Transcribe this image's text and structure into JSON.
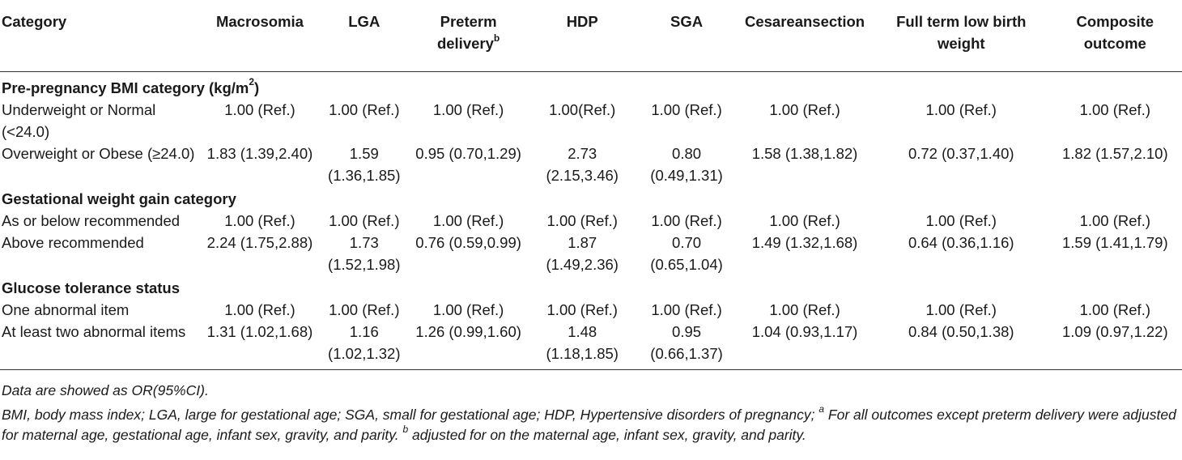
{
  "table": {
    "headers": [
      {
        "text": "Category",
        "sup": ""
      },
      {
        "text": "Macrosomia",
        "sup": ""
      },
      {
        "text": "LGA",
        "sup": ""
      },
      {
        "text": "Preterm delivery",
        "sup": "b"
      },
      {
        "text": "HDP",
        "sup": ""
      },
      {
        "text": "SGA",
        "sup": ""
      },
      {
        "text": "Cesareansection",
        "sup": ""
      },
      {
        "text": "Full term low birth weight",
        "sup": ""
      },
      {
        "text": "Composite outcome",
        "sup": ""
      }
    ],
    "sections": [
      {
        "title": "Pre-pregnancy BMI category (kg/m",
        "title_sup": "2",
        "title_end": ")",
        "rows": [
          {
            "label": "Underweight or Normal (<24.0)",
            "values": [
              "1.00 (Ref.)",
              "1.00 (Ref.)",
              "1.00 (Ref.)",
              "1.00(Ref.)",
              "1.00 (Ref.)",
              "1.00 (Ref.)",
              "1.00 (Ref.)",
              "1.00 (Ref.)"
            ]
          },
          {
            "label": "Overweight or Obese (≥24.0)",
            "values": [
              "1.83 (1.39,2.40)",
              "1.59 (1.36,1.85)",
              "0.95 (0.70,1.29)",
              "2.73 (2.15,3.46)",
              "0.80 (0.49,1.31)",
              "1.58 (1.38,1.82)",
              "0.72 (0.37,1.40)",
              "1.82 (1.57,2.10)"
            ]
          }
        ]
      },
      {
        "title": "Gestational weight gain category",
        "title_sup": "",
        "title_end": "",
        "rows": [
          {
            "label": "As or below recommended",
            "values": [
              "1.00 (Ref.)",
              "1.00 (Ref.)",
              "1.00 (Ref.)",
              "1.00 (Ref.)",
              "1.00 (Ref.)",
              "1.00 (Ref.)",
              "1.00 (Ref.)",
              "1.00 (Ref.)"
            ]
          },
          {
            "label": "Above recommended",
            "values": [
              "2.24 (1.75,2.88)",
              "1.73 (1.52,1.98)",
              "0.76 (0.59,0.99)",
              "1.87 (1.49,2.36)",
              "0.70 (0.65,1.04)",
              "1.49 (1.32,1.68)",
              "0.64 (0.36,1.16)",
              "1.59 (1.41,1.79)"
            ]
          }
        ]
      },
      {
        "title": "Glucose tolerance status",
        "title_sup": "",
        "title_end": "",
        "rows": [
          {
            "label": "One abnormal item",
            "values": [
              "1.00 (Ref.)",
              "1.00 (Ref.)",
              "1.00 (Ref.)",
              "1.00 (Ref.)",
              "1.00 (Ref.)",
              "1.00 (Ref.)",
              "1.00 (Ref.)",
              "1.00 (Ref.)"
            ]
          },
          {
            "label": "At least two abnormal items",
            "values": [
              "1.31 (1.02,1.68)",
              "1.16 (1.02,1.32)",
              "1.26 (0.99,1.60)",
              "1.48 (1.18,1.85)",
              "0.95 (0.66,1.37)",
              "1.04 (0.93,1.17)",
              "0.84 (0.50,1.38)",
              "1.09 (0.97,1.22)"
            ]
          }
        ]
      }
    ]
  },
  "notes": {
    "line1": "Data are showed as OR(95%CI).",
    "line2_a": "BMI, body mass index; LGA, large for gestational age; SGA, small for gestational age; HDP, Hypertensive disorders of pregnancy; ",
    "line2_sup_a": "a",
    "line2_b": " For all outcomes except preterm delivery were adjusted for maternal age, gestational age, infant sex, gravity, and parity. ",
    "line2_sup_b": "b",
    "line2_c": " adjusted for on the maternal age, infant sex, gravity, and parity."
  }
}
